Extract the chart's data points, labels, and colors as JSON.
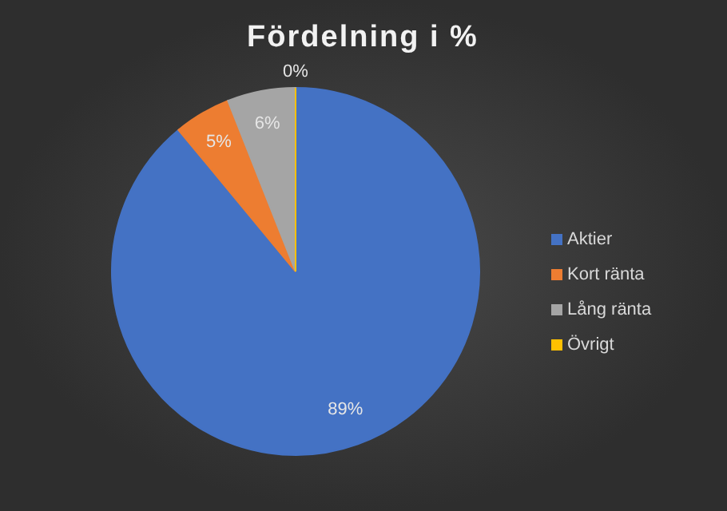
{
  "chart_data": {
    "type": "pie",
    "title": "Fördelning i %",
    "categories": [
      "Aktier",
      "Kort ränta",
      "Lång ränta",
      "Övrigt"
    ],
    "values": [
      89,
      5,
      6,
      0
    ],
    "colors": [
      "#4472c4",
      "#ed7d31",
      "#a5a5a5",
      "#ffc000"
    ],
    "value_labels": [
      "89%",
      "5%",
      "6%",
      "0%"
    ],
    "legend": "right"
  }
}
